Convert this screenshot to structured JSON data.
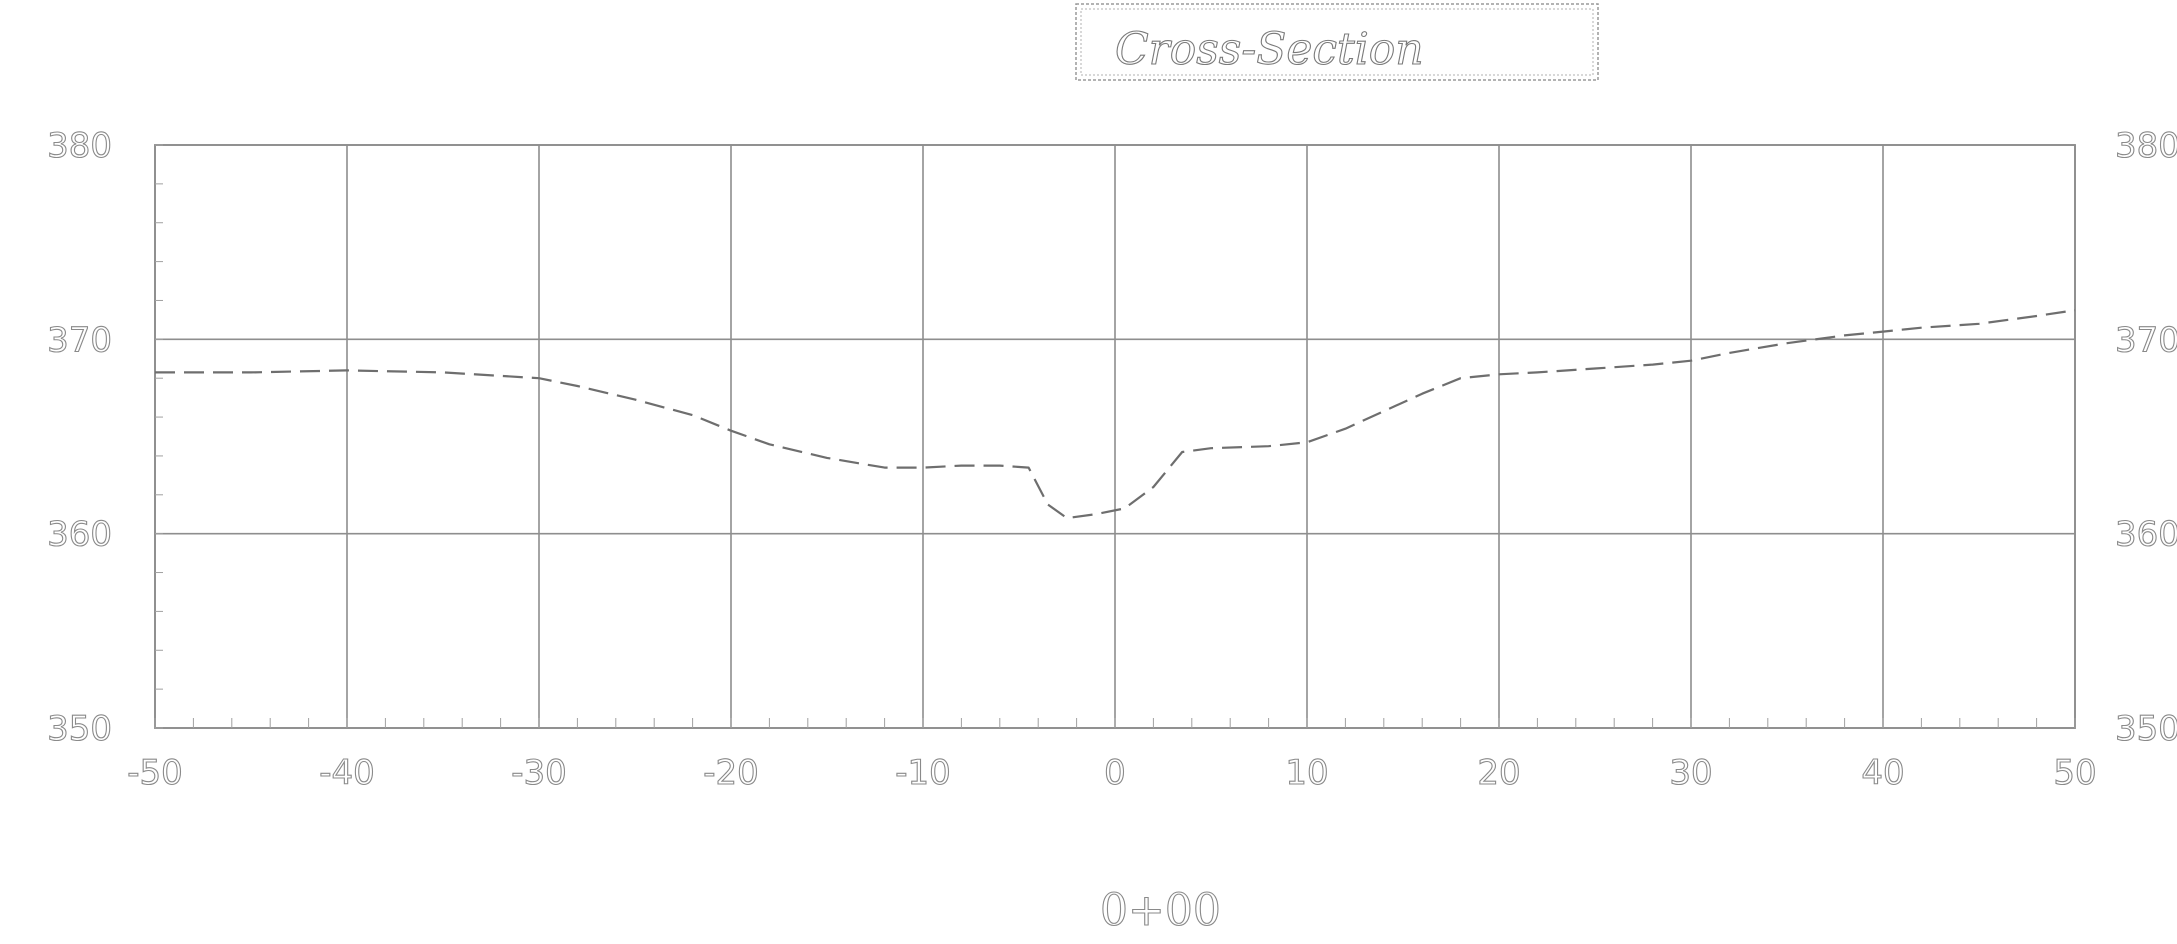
{
  "chart_data": {
    "type": "line",
    "title": "Cross-Section",
    "station_label": "0+00",
    "xlabel": "",
    "ylabel": "",
    "xlim": [
      -50,
      50
    ],
    "ylim": [
      350,
      380
    ],
    "x_ticks": [
      -50,
      -40,
      -30,
      -20,
      -10,
      0,
      10,
      20,
      30,
      40,
      50
    ],
    "y_ticks": [
      350,
      360,
      370,
      380
    ],
    "x_tick_labels": [
      "-50",
      "-40",
      "-30",
      "-20",
      "-10",
      "0",
      "10",
      "20",
      "30",
      "40",
      "50"
    ],
    "y_tick_labels": [
      "350",
      "360",
      "370",
      "380"
    ],
    "grid": true,
    "line_style": "dashed",
    "series": [
      {
        "x": [
          -50,
          -45,
          -40,
          -35,
          -30,
          -28,
          -25,
          -22,
          -20,
          -18,
          -15,
          -12,
          -10,
          -8,
          -6,
          -4.5,
          -3.5,
          -2.5,
          -1,
          0.5,
          2,
          3.5,
          5,
          8,
          10,
          12,
          14,
          16,
          18,
          20,
          22,
          25,
          28,
          30,
          32,
          35,
          38,
          40,
          42,
          45,
          48,
          50
        ],
        "y": [
          368.3,
          368.3,
          368.4,
          368.3,
          368.0,
          367.6,
          366.9,
          366.1,
          365.3,
          364.6,
          363.9,
          363.4,
          363.4,
          363.5,
          363.5,
          363.4,
          361.5,
          360.8,
          361.0,
          361.3,
          362.4,
          364.2,
          364.4,
          364.5,
          364.7,
          365.4,
          366.3,
          367.2,
          368.0,
          368.2,
          368.3,
          368.5,
          368.7,
          368.9,
          369.3,
          369.8,
          370.2,
          370.4,
          370.6,
          370.8,
          371.2,
          371.5
        ]
      }
    ]
  }
}
